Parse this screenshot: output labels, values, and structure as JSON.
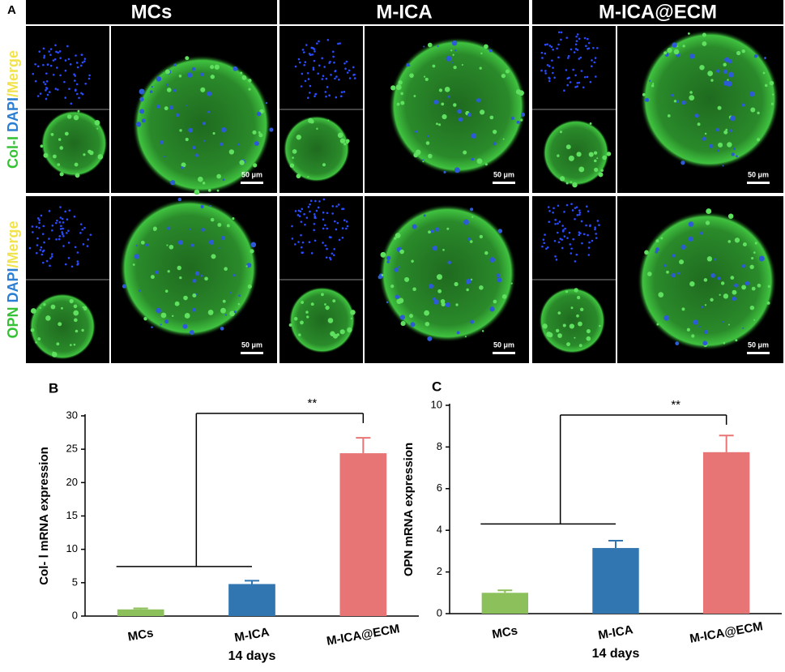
{
  "figure": {
    "panel_labels": [
      "A",
      "B",
      "C"
    ],
    "columns": [
      "MCs",
      "M-ICA",
      "M-ICA@ECM"
    ],
    "row_labels": [
      [
        "Col-I",
        "/",
        "DAPI",
        "/Merge"
      ],
      [
        "OPN",
        "/",
        "DAPI",
        "/Merge"
      ]
    ],
    "scale_bar": "50 μm"
  },
  "chart_data": [
    {
      "type": "bar",
      "ylabel": "Col- Ⅰ mRNA expression",
      "xlabel": "14 days",
      "categories": [
        "MCs",
        "M-ICA",
        "M-ICA@ECM"
      ],
      "values": [
        1.0,
        4.8,
        24.4
      ],
      "errors": [
        0.15,
        0.5,
        2.3
      ],
      "colors": [
        "#8cc05a",
        "#3176b0",
        "#e77575"
      ],
      "ylim": [
        0,
        30
      ],
      "yticks": [
        0,
        5,
        10,
        15,
        20,
        25,
        30
      ],
      "annotation": "**"
    },
    {
      "type": "bar",
      "ylabel": "OPN mRNA expression",
      "xlabel": "14 days",
      "categories": [
        "MCs",
        "M-ICA",
        "M-ICA@ECM"
      ],
      "values": [
        1.0,
        3.15,
        7.75
      ],
      "errors": [
        0.12,
        0.35,
        0.8
      ],
      "colors": [
        "#8cc05a",
        "#3176b0",
        "#e77575"
      ],
      "ylim": [
        0,
        10
      ],
      "yticks": [
        0,
        2,
        4,
        6,
        8,
        10
      ],
      "annotation": "**"
    }
  ]
}
